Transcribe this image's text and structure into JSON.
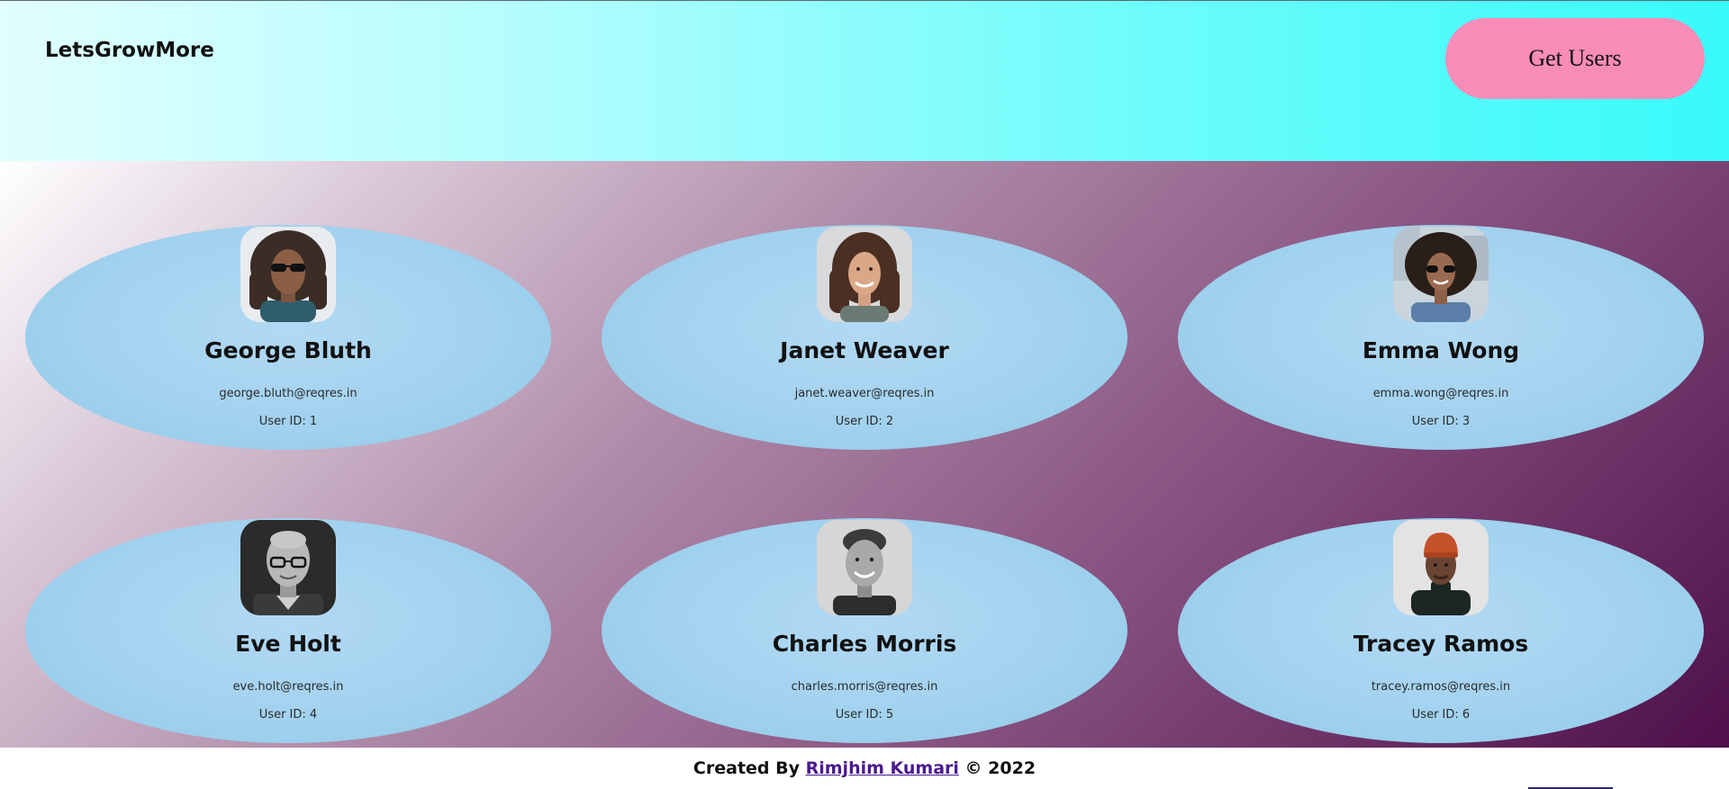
{
  "header": {
    "brand": "LetsGrowMore",
    "get_users_label": "Get Users",
    "background_colors": [
      "#e2fefe",
      "#38fafa"
    ],
    "button_color": "#fa8cb8"
  },
  "users": [
    {
      "name": "George Bluth",
      "email": "george.bluth@reqres.in",
      "id_text": "User ID: 1"
    },
    {
      "name": "Janet Weaver",
      "email": "janet.weaver@reqres.in",
      "id_text": "User ID: 2"
    },
    {
      "name": "Emma Wong",
      "email": "emma.wong@reqres.in",
      "id_text": "User ID: 3"
    },
    {
      "name": "Eve Holt",
      "email": "eve.holt@reqres.in",
      "id_text": "User ID: 4"
    },
    {
      "name": "Charles Morris",
      "email": "charles.morris@reqres.in",
      "id_text": "User ID: 5"
    },
    {
      "name": "Tracey Ramos",
      "email": "tracey.ramos@reqres.in",
      "id_text": "User ID: 6"
    }
  ],
  "footer": {
    "prefix": "Created By ",
    "author": "Rimjhim Kumari",
    "suffix": " © 2022",
    "link_color": "#4a1a8c"
  }
}
